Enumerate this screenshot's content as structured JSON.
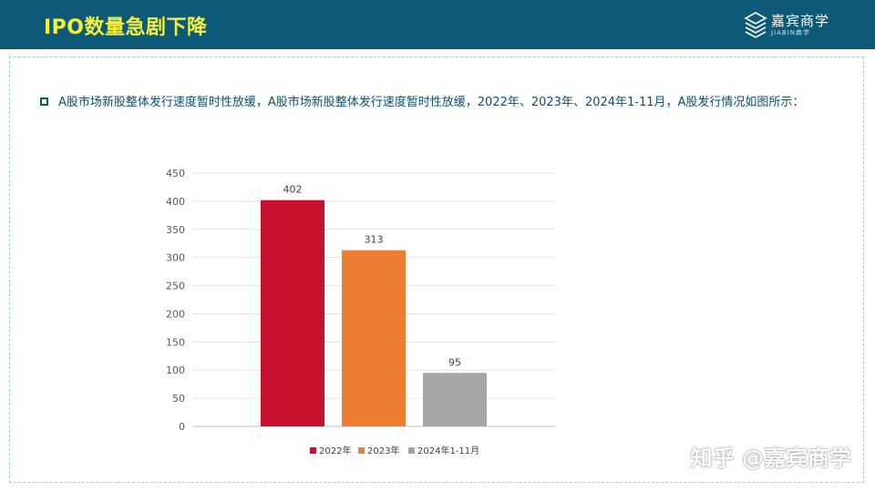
{
  "header": {
    "title": "IPO数量急剧下降"
  },
  "brand": {
    "name_cn": "嘉宾商学",
    "name_en": "JIABIN商学",
    "icon": "brand-logo-icon"
  },
  "bullet": {
    "icon": "square-bullet-icon",
    "text": "A股市场新股整体发行速度暂时性放缓，A股市场新股整体发行速度暂时性放缓，2022年、2023年、2024年1-11月，A股发行情况如图所示："
  },
  "chart_data": {
    "type": "bar",
    "categories": [
      "2022年",
      "2023年",
      "2024年1-11月"
    ],
    "values": [
      402,
      313,
      95
    ],
    "colors": [
      "#c8102e",
      "#ed7d31",
      "#a5a5a5"
    ],
    "ylim": [
      0,
      450
    ],
    "yticks": [
      0,
      50,
      100,
      150,
      200,
      250,
      300,
      350,
      400,
      450
    ],
    "grid": true,
    "legend_position": "bottom",
    "title": "",
    "xlabel": "",
    "ylabel": ""
  },
  "watermark": {
    "text": "知乎 @嘉宾商学"
  }
}
